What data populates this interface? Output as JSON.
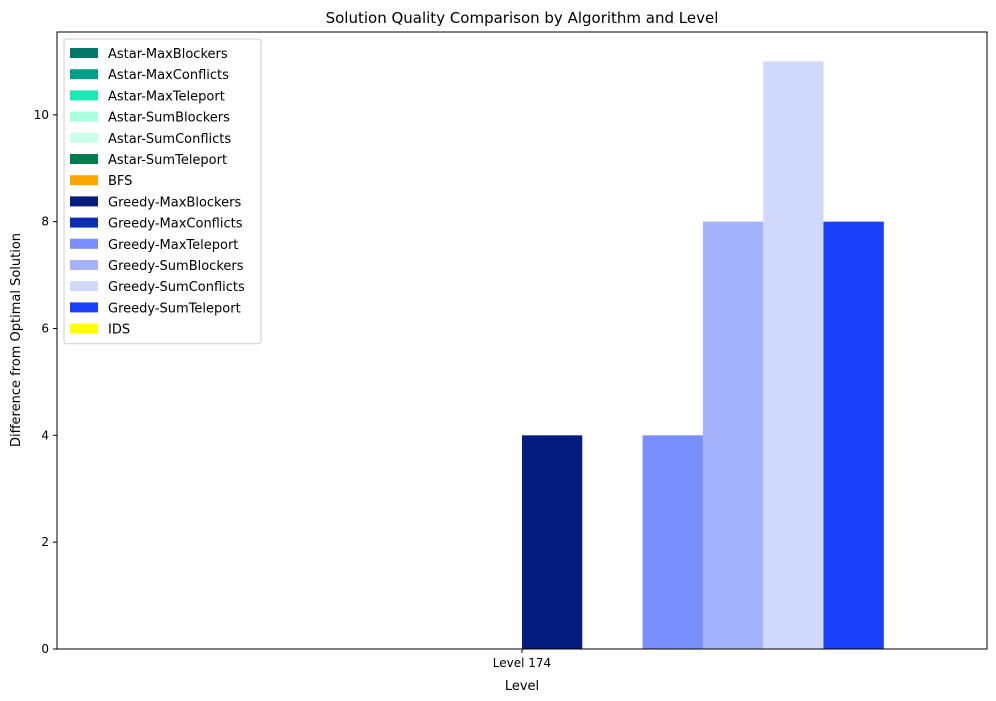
{
  "chart_data": {
    "type": "bar",
    "title": "Solution Quality Comparison by Algorithm and Level",
    "xlabel": "Level",
    "ylabel": "Difference from Optimal Solution",
    "categories": [
      "Level 174"
    ],
    "ylim": [
      0,
      11.55
    ],
    "yticks": [
      0,
      2,
      4,
      6,
      8,
      10
    ],
    "grid": false,
    "legend_position": "upper-left",
    "series": [
      {
        "name": "Astar-MaxBlockers",
        "color": "#00796B",
        "values": [
          0
        ]
      },
      {
        "name": "Astar-MaxConflicts",
        "color": "#009E8A",
        "values": [
          0
        ]
      },
      {
        "name": "Astar-MaxTeleport",
        "color": "#1DE9B6",
        "values": [
          0
        ]
      },
      {
        "name": "Astar-SumBlockers",
        "color": "#A7FFE0",
        "values": [
          0
        ]
      },
      {
        "name": "Astar-SumConflicts",
        "color": "#CCFFE8",
        "values": [
          0
        ]
      },
      {
        "name": "Astar-SumTeleport",
        "color": "#007D4F",
        "values": [
          0
        ]
      },
      {
        "name": "BFS",
        "color": "#FFA500",
        "values": [
          0
        ]
      },
      {
        "name": "Greedy-MaxBlockers",
        "color": "#051C7F",
        "values": [
          4
        ]
      },
      {
        "name": "Greedy-MaxConflicts",
        "color": "#0A2DB2",
        "values": [
          0
        ]
      },
      {
        "name": "Greedy-MaxTeleport",
        "color": "#788EFA",
        "values": [
          4
        ]
      },
      {
        "name": "Greedy-SumBlockers",
        "color": "#A5B3FC",
        "values": [
          8
        ]
      },
      {
        "name": "Greedy-SumConflicts",
        "color": "#D0D9FC",
        "values": [
          11
        ]
      },
      {
        "name": "Greedy-SumTeleport",
        "color": "#1A3FF9",
        "values": [
          8
        ]
      },
      {
        "name": "IDS",
        "color": "#FFFF00",
        "values": [
          0
        ]
      }
    ]
  }
}
